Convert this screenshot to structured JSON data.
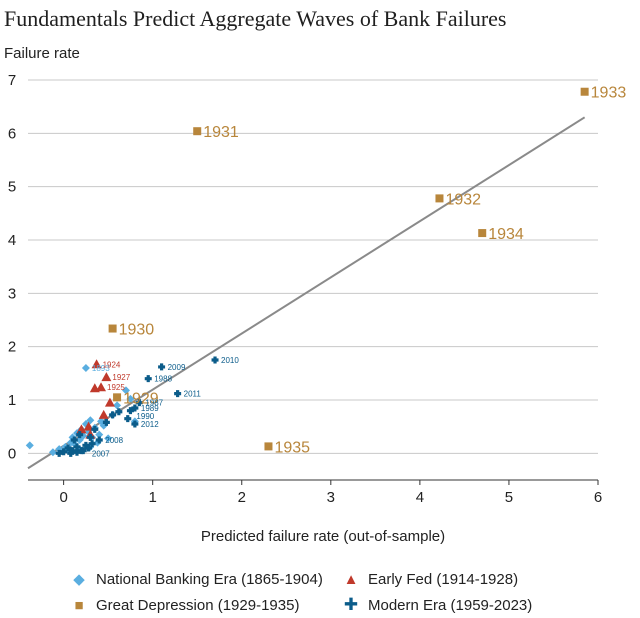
{
  "title": "Fundamentals Predict Aggregate Waves of Bank Failures",
  "chart_data": {
    "type": "scatter",
    "title": "Fundamentals Predict Aggregate Waves of Bank Failures",
    "ylabel": "Failure rate",
    "xlabel": "Predicted failure rate (out-of-sample)",
    "xlim": [
      -0.4,
      6
    ],
    "ylim": [
      -0.5,
      7
    ],
    "xticks": [
      "0",
      "1",
      "2",
      "3",
      "4",
      "5",
      "6"
    ],
    "yticks": [
      "0",
      "1",
      "2",
      "3",
      "4",
      "5",
      "6",
      "7"
    ],
    "grid": "horizontal",
    "legend_position": "bottom",
    "fit_line": {
      "x": [
        -0.4,
        5.85
      ],
      "y": [
        -0.28,
        6.3
      ]
    },
    "series": [
      {
        "name": "National Banking Era (1865-1904)",
        "color": "#5aaee0",
        "marker": "diamond",
        "points": [
          {
            "x": -0.38,
            "y": 0.15
          },
          {
            "x": -0.12,
            "y": 0.02
          },
          {
            "x": -0.05,
            "y": 0.08
          },
          {
            "x": 0.02,
            "y": 0.12
          },
          {
            "x": 0.05,
            "y": 0.05
          },
          {
            "x": 0.08,
            "y": 0.2
          },
          {
            "x": 0.1,
            "y": 0.3
          },
          {
            "x": 0.12,
            "y": 0.18
          },
          {
            "x": 0.15,
            "y": 0.38
          },
          {
            "x": 0.18,
            "y": 0.25
          },
          {
            "x": 0.2,
            "y": 0.45
          },
          {
            "x": 0.22,
            "y": 0.33
          },
          {
            "x": 0.25,
            "y": 0.55
          },
          {
            "x": 0.28,
            "y": 0.4
          },
          {
            "x": 0.3,
            "y": 0.62
          },
          {
            "x": 0.32,
            "y": 0.3
          },
          {
            "x": 0.35,
            "y": 0.48
          },
          {
            "x": 0.38,
            "y": 0.2
          },
          {
            "x": 0.4,
            "y": 0.35
          },
          {
            "x": 0.45,
            "y": 0.52
          },
          {
            "x": 0.5,
            "y": 0.28
          },
          {
            "x": 0.55,
            "y": 0.72
          },
          {
            "x": 0.6,
            "y": 0.9
          },
          {
            "x": 0.25,
            "y": 1.6
          },
          {
            "x": 0.7,
            "y": 1.18
          },
          {
            "x": 0.75,
            "y": 1.02
          },
          {
            "x": 0.8,
            "y": 0.6
          },
          {
            "x": 0.18,
            "y": 0.08
          },
          {
            "x": 0.3,
            "y": 0.12
          },
          {
            "x": 0.42,
            "y": 0.6
          }
        ],
        "labels": [
          {
            "text": "1893",
            "x": 0.25,
            "y": 1.6
          }
        ]
      },
      {
        "name": "Early Fed (1914-1928)",
        "color": "#c0392b",
        "marker": "triangle",
        "points": [
          {
            "x": 0.37,
            "y": 1.67
          },
          {
            "x": 0.48,
            "y": 1.43
          },
          {
            "x": 0.35,
            "y": 1.22
          },
          {
            "x": 0.42,
            "y": 1.24
          },
          {
            "x": 0.52,
            "y": 0.95
          },
          {
            "x": 0.28,
            "y": 0.5
          },
          {
            "x": 0.45,
            "y": 0.72
          },
          {
            "x": 0.2,
            "y": 0.45
          },
          {
            "x": 0.3,
            "y": 0.35
          }
        ],
        "labels": [
          {
            "text": "1924",
            "x": 0.37,
            "y": 1.67
          },
          {
            "text": "1927",
            "x": 0.48,
            "y": 1.43
          },
          {
            "text": "1925",
            "x": 0.42,
            "y": 1.24
          }
        ]
      },
      {
        "name": "Great Depression (1929-1935)",
        "color": "#b8863b",
        "marker": "square",
        "points": [
          {
            "x": 5.85,
            "y": 6.78
          },
          {
            "x": 1.5,
            "y": 6.04
          },
          {
            "x": 4.22,
            "y": 4.78
          },
          {
            "x": 4.7,
            "y": 4.13
          },
          {
            "x": 0.55,
            "y": 2.34
          },
          {
            "x": 2.3,
            "y": 0.13
          },
          {
            "x": 0.6,
            "y": 1.05
          }
        ],
        "labels": [
          {
            "text": "1933",
            "x": 5.85,
            "y": 6.78
          },
          {
            "text": "1931",
            "x": 1.5,
            "y": 6.04
          },
          {
            "text": "1932",
            "x": 4.22,
            "y": 4.78
          },
          {
            "text": "1934",
            "x": 4.7,
            "y": 4.13
          },
          {
            "text": "1930",
            "x": 0.55,
            "y": 2.34
          },
          {
            "text": "1935",
            "x": 2.3,
            "y": 0.13
          },
          {
            "text": "1929",
            "x": 0.6,
            "y": 1.05
          }
        ]
      },
      {
        "name": "Modern Era (1959-2023)",
        "color": "#0b5c8a",
        "marker": "plus",
        "points": [
          {
            "x": 1.7,
            "y": 1.75
          },
          {
            "x": 1.1,
            "y": 1.62
          },
          {
            "x": 0.95,
            "y": 1.4
          },
          {
            "x": 1.28,
            "y": 1.12
          },
          {
            "x": 0.85,
            "y": 0.95
          },
          {
            "x": 0.8,
            "y": 0.85
          },
          {
            "x": 0.75,
            "y": 0.8
          },
          {
            "x": 0.72,
            "y": 0.65
          },
          {
            "x": 0.8,
            "y": 0.55
          },
          {
            "x": 0.62,
            "y": 0.78
          },
          {
            "x": 0.4,
            "y": 0.25
          },
          {
            "x": 0.35,
            "y": 0.45
          },
          {
            "x": 0.3,
            "y": 0.3
          },
          {
            "x": 0.25,
            "y": 0.15
          },
          {
            "x": 0.2,
            "y": 0.05
          },
          {
            "x": 0.15,
            "y": 0.02
          },
          {
            "x": 0.1,
            "y": 0.05
          },
          {
            "x": 0.05,
            "y": 0.1
          },
          {
            "x": 0.0,
            "y": 0.03
          },
          {
            "x": -0.05,
            "y": 0.0
          },
          {
            "x": 0.12,
            "y": 0.25
          },
          {
            "x": 0.18,
            "y": 0.35
          },
          {
            "x": 0.22,
            "y": 0.05
          },
          {
            "x": 0.28,
            "y": 0.1
          },
          {
            "x": 0.08,
            "y": 0.0
          },
          {
            "x": 0.32,
            "y": 0.18
          },
          {
            "x": 0.48,
            "y": 0.58
          },
          {
            "x": 0.55,
            "y": 0.72
          },
          {
            "x": 0.15,
            "y": 0.12
          }
        ],
        "labels": [
          {
            "text": "2010",
            "x": 1.7,
            "y": 1.75
          },
          {
            "text": "2009",
            "x": 1.1,
            "y": 1.62
          },
          {
            "text": "1988",
            "x": 0.95,
            "y": 1.4
          },
          {
            "text": "2011",
            "x": 1.28,
            "y": 1.12
          },
          {
            "text": "1987",
            "x": 0.85,
            "y": 0.95
          },
          {
            "text": "1989",
            "x": 0.8,
            "y": 0.85
          },
          {
            "text": "1990",
            "x": 0.75,
            "y": 0.7
          },
          {
            "text": "2012",
            "x": 0.8,
            "y": 0.55
          },
          {
            "text": "2008",
            "x": 0.4,
            "y": 0.25
          },
          {
            "text": "2007",
            "x": 0.25,
            "y": 0.0
          }
        ]
      }
    ]
  },
  "legend": [
    {
      "label": "National Banking Era (1865-1904)",
      "symbol": "◆",
      "color": "#5aaee0"
    },
    {
      "label": "Early Fed (1914-1928)",
      "symbol": "▲",
      "color": "#c0392b"
    },
    {
      "label": "Great Depression (1929-1935)",
      "symbol": "■",
      "color": "#b8863b"
    },
    {
      "label": "Modern Era (1959-2023)",
      "symbol": "✚",
      "color": "#0b5c8a"
    }
  ]
}
